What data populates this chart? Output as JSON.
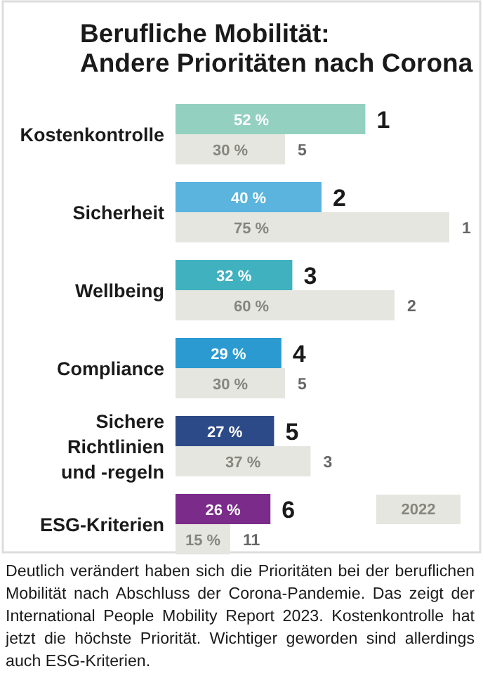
{
  "chart_data": {
    "type": "bar",
    "orientation": "horizontal",
    "title": "Berufliche Mobilität:\nAndere Prioritäten nach Corona",
    "categories": [
      "Kostenkontrolle",
      "Sicherheit",
      "Wellbeing",
      "Compliance",
      "Sichere Richtlinien und -regeln",
      "ESG-Kriterien"
    ],
    "series": [
      {
        "colors": [
          "#93d0c0",
          "#5ab4de",
          "#3fb1bf",
          "#2a9ad0",
          "#2c4a87",
          "#7b2b8a"
        ],
        "values": [
          52,
          40,
          32,
          29,
          27,
          26
        ],
        "value_labels": [
          "52 %",
          "40 %",
          "32 %",
          "29 %",
          "27 %",
          "26 %"
        ]
      },
      {
        "name": "2022",
        "color": "#e6e6e0",
        "values": [
          30,
          75,
          60,
          30,
          37,
          15
        ],
        "value_labels": [
          "30 %",
          "75 %",
          "60 %",
          "30 %",
          "37 %",
          "15 %"
        ]
      }
    ],
    "legend": "bottom right",
    "annotations": [
      {
        "text": "1",
        "x": 52,
        "y": "Kostenkontrolle"
      },
      {
        "text": "5",
        "x": 30,
        "y": "Kostenkontrolle"
      },
      {
        "text": "2",
        "x": 40,
        "y": "Sicherheit"
      },
      {
        "text": "1",
        "x": 75,
        "y": "Sicherheit"
      },
      {
        "text": "3",
        "x": 32,
        "y": "Wellbeing"
      },
      {
        "text": "2",
        "x": 60,
        "y": "Wellbeing"
      },
      {
        "text": "4",
        "x": 29,
        "y": "Compliance"
      },
      {
        "text": "5",
        "x": 30,
        "y": "Compliance"
      },
      {
        "text": "5",
        "x": 27,
        "y": "Sichere Richtlinien und -regeln"
      },
      {
        "text": "3",
        "x": 37,
        "y": "Sichere Richtlinien und -regeln"
      },
      {
        "text": "6",
        "x": 26,
        "y": "ESG-Kriterien"
      },
      {
        "text": "11",
        "x": 15,
        "y": "ESG-Kriterien"
      },
      "Deutlich verändert haben sich die Prioritäten bei der beruflichen Mobilität nach Abschluss der Corona-Pandemie. Das zeigt der International People Mobility Report 2023. Kostenkontrolle hat jetzt die höchste Priorität. Wichtiger geworden sind allerdings auch ESG-Kriterien."
    ]
  }
}
